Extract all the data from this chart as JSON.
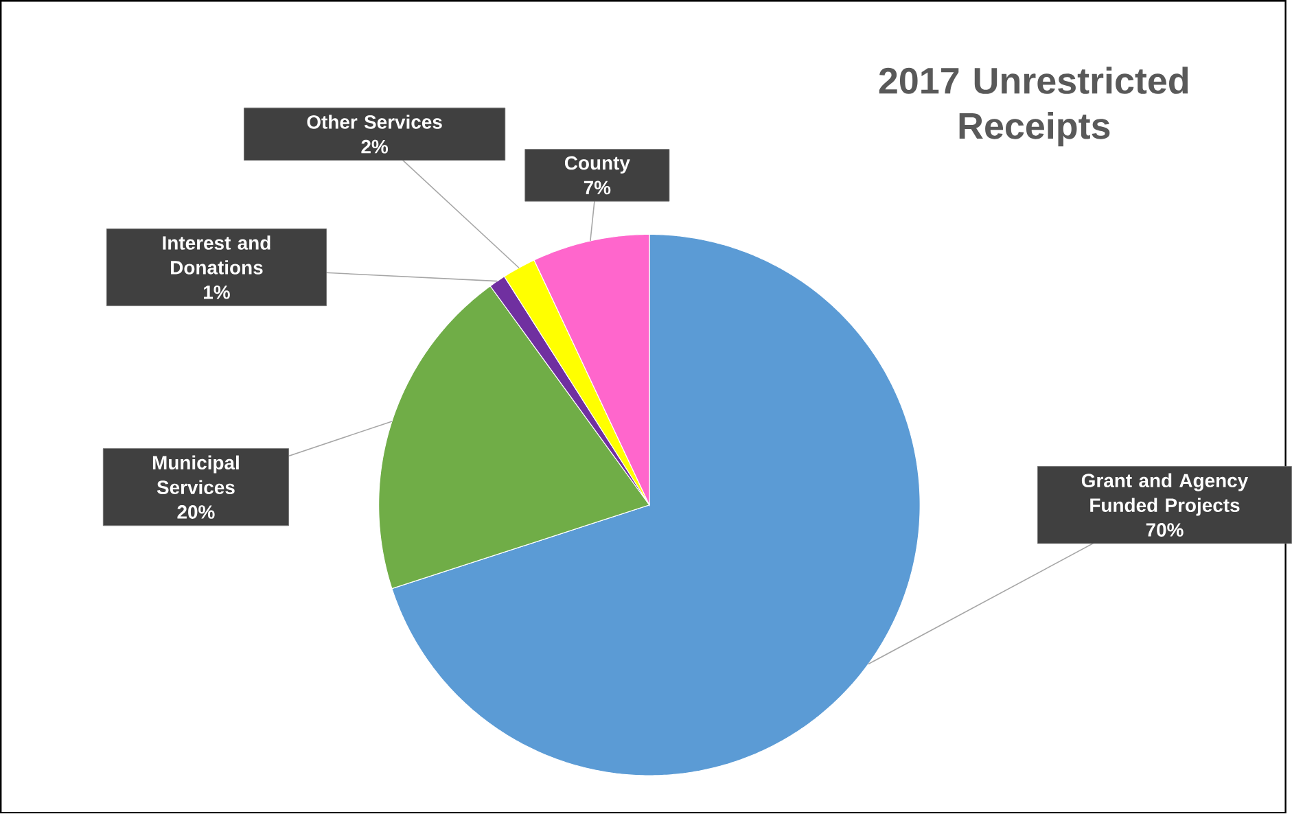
{
  "chart_data": {
    "type": "pie",
    "title": "2017 Unrestricted Receipts",
    "categories": [
      "Grant and Agency Funded Projects",
      "Municipal Services",
      "Interest and Donations",
      "Other Services",
      "County"
    ],
    "values": [
      70,
      20,
      1,
      2,
      7
    ],
    "value_labels": [
      "70%",
      "20%",
      "1%",
      "2%",
      "7%"
    ],
    "colors": [
      "#5b9bd5",
      "#70ad47",
      "#7030a0",
      "#ffff00",
      "#ff66cc"
    ]
  }
}
